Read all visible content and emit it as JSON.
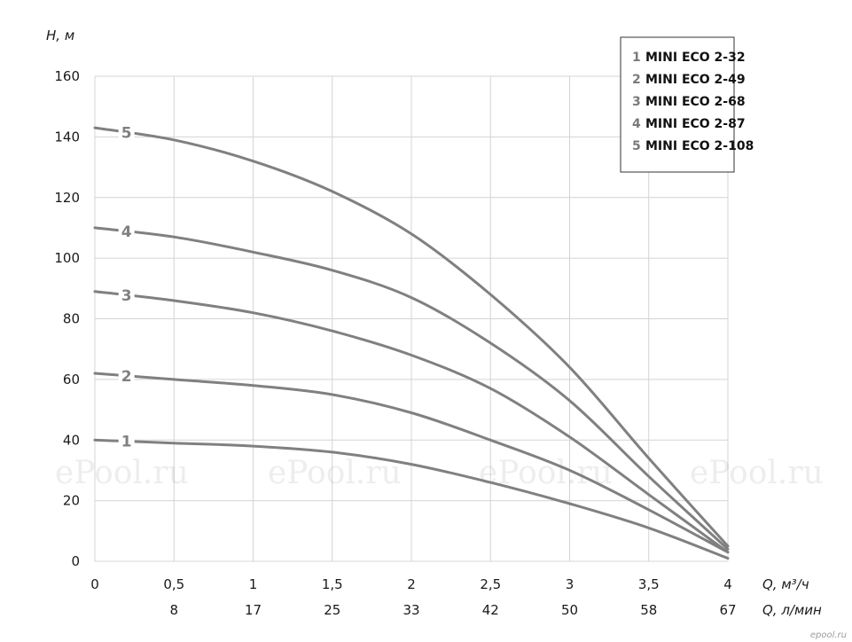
{
  "chart_data": {
    "type": "line",
    "ylabel": "H, м",
    "xlabel": "Q, м³/ч",
    "x2label": "Q, л/мин",
    "xlim": [
      0,
      4
    ],
    "ylim": [
      0,
      160
    ],
    "grid": true,
    "legend_position": "top-right",
    "x_ticks": [
      "0",
      "0,5",
      "1",
      "1,5",
      "2",
      "2,5",
      "3",
      "3,5",
      "4"
    ],
    "x2_ticks": [
      "8",
      "17",
      "25",
      "33",
      "42",
      "50",
      "58",
      "67"
    ],
    "y_ticks": [
      "0",
      "20",
      "40",
      "60",
      "80",
      "100",
      "120",
      "140",
      "160"
    ],
    "series": [
      {
        "index": "1",
        "name": "MINI ECO 2-32",
        "x": [
          0,
          0.5,
          1,
          1.5,
          2,
          2.5,
          3,
          3.5,
          4
        ],
        "y": [
          40,
          39,
          38,
          36,
          32,
          26,
          19,
          11,
          1
        ]
      },
      {
        "index": "2",
        "name": "MINI ECO 2-49",
        "x": [
          0,
          0.5,
          1,
          1.5,
          2,
          2.5,
          3,
          3.5,
          4
        ],
        "y": [
          62,
          60,
          58,
          55,
          49,
          40,
          30,
          17,
          3
        ]
      },
      {
        "index": "3",
        "name": "MINI ECO 2-68",
        "x": [
          0,
          0.5,
          1,
          1.5,
          2,
          2.5,
          3,
          3.5,
          4
        ],
        "y": [
          89,
          86,
          82,
          76,
          68,
          57,
          41,
          22,
          3
        ]
      },
      {
        "index": "4",
        "name": "MINI ECO 2-87",
        "x": [
          0,
          0.5,
          1,
          1.5,
          2,
          2.5,
          3,
          3.5,
          4
        ],
        "y": [
          110,
          107,
          102,
          96,
          87,
          72,
          53,
          28,
          4
        ]
      },
      {
        "index": "5",
        "name": "MINI ECO 2-108",
        "x": [
          0,
          0.5,
          1,
          1.5,
          2,
          2.5,
          3,
          3.5,
          4
        ],
        "y": [
          143,
          139,
          132,
          122,
          108,
          88,
          64,
          34,
          5
        ]
      }
    ]
  },
  "watermarks": [
    "ePool.ru",
    "ePool.ru",
    "ePool.ru",
    "ePool.ru"
  ],
  "corner_mark": "epool.ru"
}
